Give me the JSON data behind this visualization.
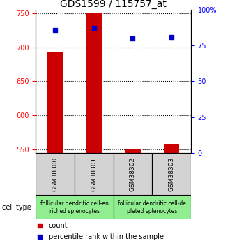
{
  "title": "GDS1599 / 115757_at",
  "samples": [
    "GSM38300",
    "GSM38301",
    "GSM38302",
    "GSM38303"
  ],
  "counts": [
    693,
    750,
    551,
    558
  ],
  "percentile_ranks": [
    86,
    87,
    80,
    81
  ],
  "ylim_left": [
    545,
    755
  ],
  "ylim_right": [
    0,
    100
  ],
  "yticks_left": [
    550,
    600,
    650,
    700,
    750
  ],
  "yticks_right": [
    0,
    25,
    50,
    75,
    100
  ],
  "ytick_labels_right": [
    "0",
    "25",
    "50",
    "75",
    "100%"
  ],
  "bar_color": "#cc0000",
  "dot_color": "#0000cc",
  "bar_width": 0.4,
  "cell_groups": [
    {
      "label": "follicular dendritic cell-en\nriched splenocytes",
      "samples": [
        0,
        1
      ],
      "color": "#90ee90"
    },
    {
      "label": "follicular dendritic cell-de\npleted splenocytes",
      "samples": [
        2,
        3
      ],
      "color": "#90ee90"
    }
  ],
  "sample_box_color": "#d3d3d3",
  "legend_items": [
    {
      "color": "#cc0000",
      "label": "count"
    },
    {
      "color": "#0000cc",
      "label": "percentile rank within the sample"
    }
  ],
  "cell_type_label": "cell type",
  "title_fontsize": 10,
  "tick_fontsize": 7,
  "sample_label_fontsize": 6.5,
  "cell_label_fontsize": 5.5,
  "legend_fontsize": 7
}
